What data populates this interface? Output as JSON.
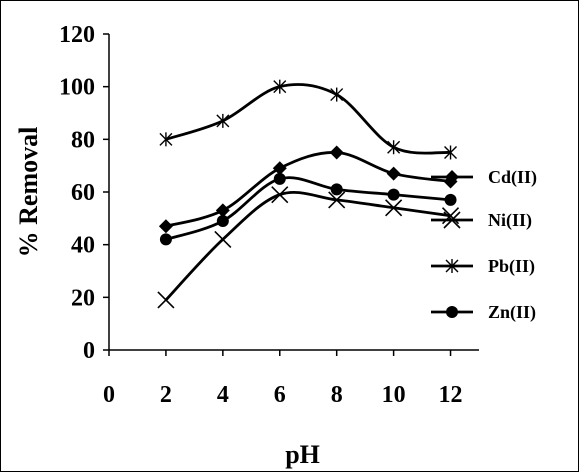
{
  "chart_data": {
    "type": "line",
    "xlabel": "pH",
    "ylabel": "% Removal",
    "xlim": [
      0,
      13
    ],
    "ylim": [
      0,
      120
    ],
    "x_ticks": [
      "0",
      "2",
      "4",
      "6",
      "8",
      "10",
      "12"
    ],
    "y_ticks": [
      "0",
      "20",
      "40",
      "60",
      "80",
      "100",
      "120"
    ],
    "grid": false,
    "legend_position": "right",
    "series": [
      {
        "name": "Cd(II)",
        "marker": "diamond",
        "color": "#000000",
        "x": [
          2,
          4,
          6,
          8,
          10,
          12
        ],
        "y": [
          47,
          53,
          69,
          75,
          67,
          64
        ]
      },
      {
        "name": "Ni(II)",
        "marker": "x",
        "color": "#000000",
        "x": [
          2,
          4,
          6,
          8,
          10,
          12
        ],
        "y": [
          19,
          42,
          59,
          57,
          54,
          51
        ]
      },
      {
        "name": "Pb(II)",
        "marker": "asterisk",
        "color": "#000000",
        "x": [
          2,
          4,
          6,
          8,
          10,
          12
        ],
        "y": [
          80,
          87,
          100,
          97,
          77,
          75
        ]
      },
      {
        "name": "Zn(II)",
        "marker": "circle",
        "color": "#000000",
        "x": [
          2,
          4,
          6,
          8,
          10,
          12
        ],
        "y": [
          42,
          49,
          65,
          61,
          59,
          57
        ]
      }
    ]
  }
}
